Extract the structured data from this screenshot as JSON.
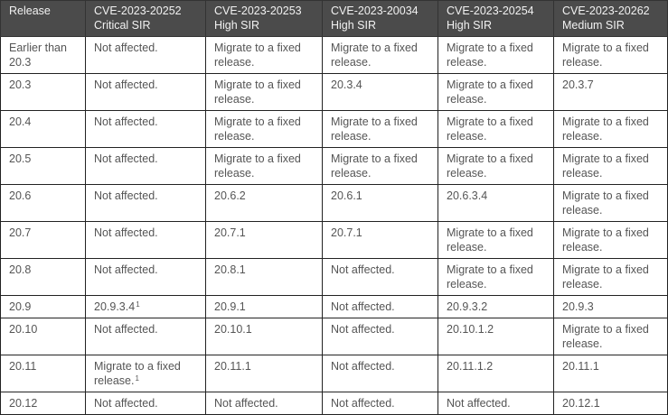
{
  "headers": [
    {
      "l1": "Release",
      "l2": ""
    },
    {
      "l1": "CVE-2023-20252",
      "l2": "Critical SIR"
    },
    {
      "l1": "CVE-2023-20253",
      "l2": "High SIR"
    },
    {
      "l1": "CVE-2023-20034",
      "l2": "High SIR"
    },
    {
      "l1": "CVE-2023-20254",
      "l2": "High SIR"
    },
    {
      "l1": "CVE-2023-20262",
      "l2": "Medium SIR"
    }
  ],
  "rows": [
    [
      "Earlier than 20.3",
      "Not affected.",
      "Migrate to a fixed release.",
      "Migrate to a fixed release.",
      "Migrate to a fixed release.",
      "Migrate to a fixed release."
    ],
    [
      "20.3",
      "Not affected.",
      "Migrate to a fixed release.",
      "20.3.4",
      "Migrate to a fixed release.",
      "20.3.7"
    ],
    [
      "20.4",
      "Not affected.",
      "Migrate to a fixed release.",
      "Migrate to a fixed release.",
      "Migrate to a fixed release.",
      "Migrate to a fixed release."
    ],
    [
      "20.5",
      "Not affected.",
      "Migrate to a fixed release.",
      "Migrate to a fixed release.",
      "Migrate to a fixed release.",
      "Migrate to a fixed release."
    ],
    [
      "20.6",
      "Not affected.",
      "20.6.2",
      "20.6.1",
      "20.6.3.4",
      "Migrate to a fixed release."
    ],
    [
      "20.7",
      "Not affected.",
      "20.7.1",
      "20.7.1",
      "Migrate to a fixed release.",
      "Migrate to a fixed release."
    ],
    [
      "20.8",
      "Not affected.",
      "20.8.1",
      "Not affected.",
      "Migrate to a fixed release.",
      "Migrate to a fixed release."
    ],
    [
      "20.9",
      "20.9.3.4",
      "20.9.1",
      "Not affected.",
      "20.9.3.2",
      "20.9.3"
    ],
    [
      "20.10",
      "Not affected.",
      "20.10.1",
      "Not affected.",
      "20.10.1.2",
      "Migrate to a fixed release."
    ],
    [
      "20.11",
      "Migrate to a fixed release.",
      "20.11.1",
      "Not affected.",
      "20.11.1.2",
      "20.11.1"
    ],
    [
      "20.12",
      "Not affected.",
      "Not affected.",
      "Not affected.",
      "Not affected.",
      "20.12.1"
    ]
  ],
  "footnotes": {
    "r7c1": "1",
    "r9c1": "1"
  }
}
